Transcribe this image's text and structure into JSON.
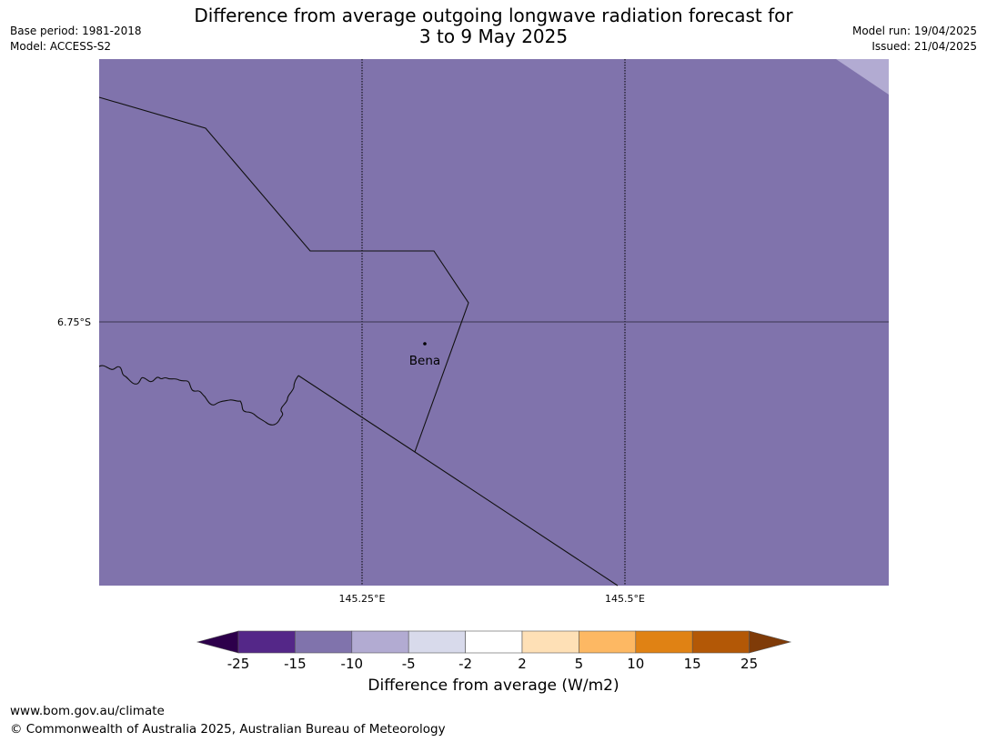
{
  "header": {
    "title_line1": "Difference from average outgoing longwave radiation forecast for",
    "title_line2": "3 to 9 May 2025",
    "base_period": "Base period: 1981-2018",
    "model": "Model: ACCESS-S2",
    "model_run": "Model run: 19/04/2025",
    "issued": "Issued: 21/04/2025"
  },
  "map": {
    "fill_color": "#8073ac",
    "corner_fill_color": "#b2abd2",
    "place_label": "Bena",
    "lat_labels": [
      "6.75°S"
    ],
    "lon_labels": [
      "145.25°E",
      "145.5°E"
    ]
  },
  "colorbar": {
    "label": "Difference from average (W/m2)",
    "colors": [
      "#2d004b",
      "#542788",
      "#8073ac",
      "#b2abd2",
      "#d8daeb",
      "#ffffff",
      "#fee0b6",
      "#fdb863",
      "#e08214",
      "#b35806",
      "#7f3b08"
    ],
    "tick_labels": [
      "-25",
      "-15",
      "-10",
      "-5",
      "-2",
      "2",
      "5",
      "10",
      "15",
      "25"
    ]
  },
  "footer": {
    "url": "www.bom.gov.au/climate",
    "copyright": "© Commonwealth of Australia 2025, Australian Bureau of Meteorology"
  }
}
